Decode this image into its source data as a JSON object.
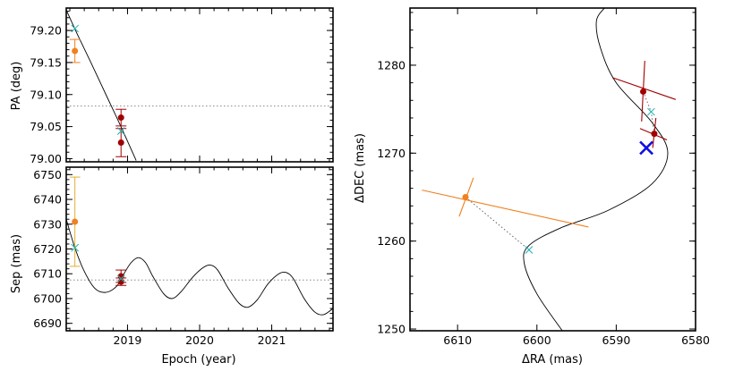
{
  "chart_data": [
    {
      "id": "pa",
      "type": "scatter",
      "xlabel": "",
      "ylabel": "PA (deg)",
      "xlim": [
        2018.15,
        2021.85
      ],
      "ylim": [
        78.995,
        79.235
      ],
      "xticks": [
        2019,
        2020,
        2021
      ],
      "xticklabels": [
        "",
        "",
        ""
      ],
      "yticks": [
        79.0,
        79.05,
        79.1,
        79.15,
        79.2
      ],
      "yticklabels": [
        "79.00",
        "79.05",
        "79.10",
        "79.15",
        "79.20"
      ],
      "hline": 79.082,
      "model_curve": [
        [
          2018.15,
          79.232
        ],
        [
          2018.3,
          79.195
        ],
        [
          2018.5,
          79.148
        ],
        [
          2018.7,
          79.1
        ],
        [
          2018.9,
          79.052
        ],
        [
          2019.12,
          78.997
        ]
      ],
      "observations": [
        {
          "x": 2018.27,
          "y": 79.168,
          "err": 0.018,
          "color": "#f08020"
        },
        {
          "x": 2018.91,
          "y": 79.064,
          "err": 0.013,
          "color": "#a00000"
        },
        {
          "x": 2018.91,
          "y": 79.025,
          "err": 0.022,
          "color": "#a00000"
        }
      ],
      "model_points": [
        {
          "x": 2018.27,
          "y": 79.203,
          "color": "#20b0b0"
        },
        {
          "x": 2018.91,
          "y": 79.043,
          "color": "#20b0b0"
        }
      ]
    },
    {
      "id": "sep",
      "type": "line",
      "xlabel": "Epoch (year)",
      "ylabel": "Sep (mas)",
      "xlim": [
        2018.15,
        2021.85
      ],
      "ylim": [
        6687,
        6753
      ],
      "xticks": [
        2019,
        2020,
        2021
      ],
      "xticklabels": [
        "2019",
        "2020",
        "2021"
      ],
      "yticks": [
        6690,
        6700,
        6710,
        6720,
        6730,
        6740,
        6750
      ],
      "yticklabels": [
        "6690",
        "6700",
        "6710",
        "6720",
        "6730",
        "6740",
        "6750"
      ],
      "hline": 6707.5,
      "model_curve": [
        [
          2018.15,
          6732
        ],
        [
          2018.27,
          6720.5
        ],
        [
          2018.4,
          6711
        ],
        [
          2018.55,
          6704
        ],
        [
          2018.7,
          6702.5
        ],
        [
          2018.85,
          6705
        ],
        [
          2018.95,
          6710
        ],
        [
          2019.05,
          6714.5
        ],
        [
          2019.15,
          6716.5
        ],
        [
          2019.25,
          6714.5
        ],
        [
          2019.35,
          6709
        ],
        [
          2019.5,
          6702
        ],
        [
          2019.62,
          6700
        ],
        [
          2019.75,
          6703
        ],
        [
          2019.9,
          6708.5
        ],
        [
          2020.05,
          6712.5
        ],
        [
          2020.15,
          6713.5
        ],
        [
          2020.25,
          6711.5
        ],
        [
          2020.4,
          6704
        ],
        [
          2020.55,
          6698
        ],
        [
          2020.67,
          6696.5
        ],
        [
          2020.8,
          6699.5
        ],
        [
          2020.95,
          6706
        ],
        [
          2021.1,
          6710
        ],
        [
          2021.2,
          6710.5
        ],
        [
          2021.3,
          6708
        ],
        [
          2021.45,
          6700
        ],
        [
          2021.6,
          6694.5
        ],
        [
          2021.72,
          6693.5
        ],
        [
          2021.85,
          6696
        ]
      ],
      "observations": [
        {
          "x": 2018.27,
          "y": 6731,
          "err": 18,
          "color": "#f08020",
          "errColor": "#e0b030"
        },
        {
          "x": 2018.91,
          "y": 6709,
          "err": 2.5,
          "color": "#a00000"
        },
        {
          "x": 2018.91,
          "y": 6706.8,
          "err": 1.5,
          "color": "#a00000"
        }
      ],
      "model_points": [
        {
          "x": 2018.27,
          "y": 6720.5,
          "color": "#20b0b0"
        },
        {
          "x": 2018.91,
          "y": 6708,
          "color": "#20b0b0"
        }
      ]
    },
    {
      "id": "sky",
      "type": "scatter",
      "xlabel": "ΔRA (mas)",
      "ylabel": "ΔDEC (mas)",
      "xlim": [
        6616,
        6580
      ],
      "ylim": [
        1249.8,
        1286.5
      ],
      "xticks": [
        6610,
        6600,
        6590,
        6580
      ],
      "xticklabels": [
        "6610",
        "6600",
        "6590",
        "6580"
      ],
      "yticks": [
        1250,
        1260,
        1270,
        1280
      ],
      "yticklabels": [
        "1250",
        "1260",
        "1270",
        "1280"
      ],
      "model_curve": [
        [
          6596.8,
          1249.8
        ],
        [
          6600.0,
          1254.0
        ],
        [
          6601.6,
          1257.5
        ],
        [
          6601.0,
          1259.5
        ],
        [
          6597.0,
          1261.5
        ],
        [
          6591.0,
          1263.5
        ],
        [
          6585.5,
          1266.5
        ],
        [
          6583.5,
          1270.0
        ],
        [
          6585.5,
          1273.5
        ],
        [
          6590.0,
          1278.0
        ],
        [
          6592.0,
          1282.0
        ],
        [
          6592.5,
          1285.0
        ],
        [
          6591.5,
          1286.5
        ]
      ],
      "observations": [
        {
          "x": 6609.0,
          "y": 1265.0,
          "color": "#f08020",
          "arms": [
            [
              [
                6614.5,
                1265.8
              ],
              [
                6593.5,
                1261.6
              ]
            ],
            [
              [
                6608.0,
                1267.2
              ],
              [
                6609.8,
                1262.8
              ]
            ]
          ]
        },
        {
          "x": 6586.6,
          "y": 1277.0,
          "color": "#a00000",
          "arms": [
            [
              [
                6590.5,
                1278.6
              ],
              [
                6582.5,
                1276.1
              ]
            ],
            [
              [
                6586.4,
                1280.5
              ],
              [
                6586.8,
                1273.6
              ]
            ]
          ]
        },
        {
          "x": 6585.2,
          "y": 1272.2,
          "color": "#a00000",
          "arms": [
            [
              [
                6587.0,
                1272.8
              ],
              [
                6583.6,
                1271.5
              ]
            ],
            [
              [
                6585.0,
                1274.0
              ],
              [
                6585.4,
                1270.6
              ]
            ]
          ]
        }
      ],
      "model_points": [
        {
          "x": 6601.0,
          "y": 1259.0,
          "color": "#20b0b0"
        },
        {
          "x": 6585.6,
          "y": 1274.7,
          "color": "#20b0b0"
        }
      ],
      "links": [
        {
          "from": [
            6609.0,
            1265.0
          ],
          "to": [
            6601.0,
            1259.0
          ]
        },
        {
          "from": [
            6586.6,
            1277.0
          ],
          "to": [
            6585.6,
            1274.7
          ]
        },
        {
          "from": [
            6585.2,
            1272.2
          ],
          "to": [
            6585.6,
            1274.7
          ]
        }
      ],
      "reference_marker": {
        "x": 6586.2,
        "y": 1270.6,
        "color": "#1010e0"
      }
    }
  ]
}
